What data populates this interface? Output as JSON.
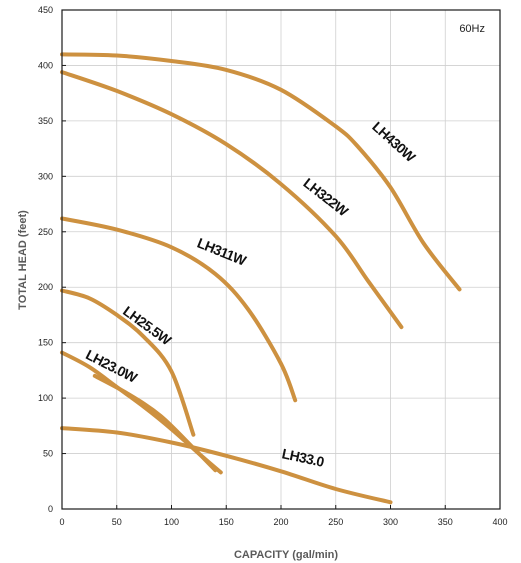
{
  "chart_data": {
    "type": "line",
    "title": "",
    "annotation": "60Hz",
    "xlabel": "CAPACITY (gal/min)",
    "ylabel": "TOTAL HEAD (feet)",
    "xlim": [
      0,
      400
    ],
    "ylim": [
      0,
      450
    ],
    "xticks": [
      0,
      50,
      100,
      150,
      200,
      250,
      300,
      350,
      400
    ],
    "yticks": [
      0,
      50,
      100,
      150,
      200,
      250,
      300,
      350,
      400,
      450
    ],
    "grid": true,
    "line_color": "#cd9140",
    "series": [
      {
        "name": "LH430W",
        "x": [
          0,
          50,
          100,
          150,
          200,
          250,
          270,
          300,
          330,
          363
        ],
        "y": [
          410,
          409,
          404,
          396,
          378,
          345,
          327,
          290,
          240,
          198
        ]
      },
      {
        "name": "LH322W",
        "x": [
          0,
          50,
          100,
          150,
          200,
          250,
          280,
          310
        ],
        "y": [
          394,
          377,
          356,
          329,
          293,
          246,
          205,
          164
        ]
      },
      {
        "name": "LH311W",
        "x": [
          0,
          50,
          100,
          140,
          170,
          200,
          213
        ],
        "y": [
          262,
          252,
          236,
          212,
          180,
          131,
          98
        ]
      },
      {
        "name": "LH25.5W",
        "x": [
          0,
          25,
          50,
          75,
          100,
          120
        ],
        "y": [
          197,
          190,
          175,
          155,
          124,
          67
        ]
      },
      {
        "name": "LH23.0W",
        "x": [
          0,
          25,
          50,
          75,
          100,
          125,
          145
        ],
        "y": [
          141,
          128,
          110,
          92,
          72,
          50,
          33
        ]
      },
      {
        "name": "LH33.0",
        "x": [
          0,
          50,
          100,
          150,
          200,
          250,
          300
        ],
        "y": [
          73,
          69,
          60,
          48,
          34,
          18,
          6
        ]
      },
      {
        "name": "",
        "x": [
          30,
          60,
          90,
          120,
          140
        ],
        "y": [
          120,
          104,
          84,
          55,
          35
        ]
      }
    ]
  }
}
